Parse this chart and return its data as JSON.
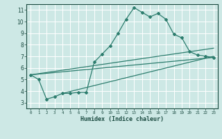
{
  "bg_color": "#cde8e5",
  "grid_color": "#ffffff",
  "line_color": "#2d7d6e",
  "xlabel": "Humidex (Indice chaleur)",
  "xlim": [
    -0.5,
    23.5
  ],
  "ylim": [
    2.5,
    11.5
  ],
  "xticks": [
    0,
    1,
    2,
    3,
    4,
    5,
    6,
    7,
    8,
    9,
    10,
    11,
    12,
    13,
    14,
    15,
    16,
    17,
    18,
    19,
    20,
    21,
    22,
    23
  ],
  "yticks": [
    3,
    4,
    5,
    6,
    7,
    8,
    9,
    10,
    11
  ],
  "series1_x": [
    0,
    1,
    2,
    3,
    4,
    5,
    6,
    7,
    8,
    9,
    10,
    11,
    12,
    13,
    14,
    15,
    16,
    17,
    18,
    19,
    20,
    21,
    22,
    23
  ],
  "series1_y": [
    5.4,
    5.0,
    3.3,
    3.5,
    3.8,
    3.8,
    3.9,
    3.9,
    6.5,
    7.2,
    7.9,
    9.0,
    10.2,
    11.2,
    10.8,
    10.4,
    10.7,
    10.2,
    8.9,
    8.6,
    7.4,
    7.1,
    7.0,
    6.9
  ],
  "series2_x": [
    0,
    23
  ],
  "series2_y": [
    5.4,
    6.9
  ],
  "series3_x": [
    0,
    23
  ],
  "series3_y": [
    5.4,
    7.7
  ],
  "series4_x": [
    4,
    23
  ],
  "series4_y": [
    3.8,
    7.0
  ]
}
